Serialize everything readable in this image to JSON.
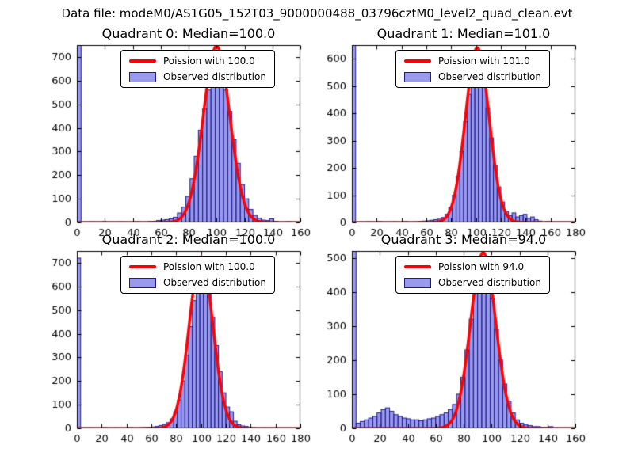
{
  "figure": {
    "title": "Data file: modeM0/AS1G05_152T03_9000000488_03796cztM0_level2_quad_clean.evt"
  },
  "styles": {
    "bar_fill": "rgba(92,92,226,0.62)",
    "bar_edge": "#1d1d8f",
    "curve_color": "#ff0000",
    "axis_color": "#000000",
    "background": "#ffffff"
  },
  "chart_data": [
    {
      "type": "bar",
      "subtype": "histogram-with-fit-line",
      "title": "Quadrant 0: Median=100.0",
      "legend": [
        "Poission with 100.0",
        "Observed distribution"
      ],
      "xlim": [
        0,
        160
      ],
      "ylim": [
        0,
        750
      ],
      "xticks": [
        0,
        20,
        40,
        60,
        80,
        100,
        120,
        140,
        160
      ],
      "yticks": [
        0,
        100,
        200,
        300,
        400,
        500,
        600,
        700
      ],
      "bins": {
        "start": 0,
        "width": 3
      },
      "counts": [
        750,
        0,
        0,
        2,
        0,
        0,
        3,
        0,
        0,
        0,
        2,
        0,
        0,
        0,
        3,
        0,
        0,
        4,
        5,
        8,
        10,
        12,
        15,
        22,
        40,
        65,
        110,
        185,
        280,
        390,
        480,
        560,
        650,
        700,
        640,
        560,
        470,
        350,
        250,
        160,
        100,
        55,
        30,
        18,
        10,
        8,
        15,
        5,
        0,
        0,
        3,
        0,
        0
      ],
      "curve": {
        "type": "gaussian",
        "mu": 100,
        "sigma": 9.5,
        "amp": 745
      }
    },
    {
      "type": "bar",
      "subtype": "histogram-with-fit-line",
      "title": "Quadrant 1: Median=101.0",
      "legend": [
        "Poission with 101.0",
        "Observed distribution"
      ],
      "xlim": [
        0,
        180
      ],
      "ylim": [
        0,
        650
      ],
      "xticks": [
        0,
        20,
        40,
        60,
        80,
        100,
        120,
        140,
        160,
        180
      ],
      "yticks": [
        0,
        100,
        200,
        300,
        400,
        500,
        600
      ],
      "bins": {
        "start": 0,
        "width": 3
      },
      "counts": [
        650,
        0,
        0,
        0,
        2,
        0,
        0,
        3,
        0,
        0,
        0,
        2,
        0,
        0,
        3,
        0,
        0,
        2,
        4,
        5,
        6,
        8,
        10,
        12,
        18,
        30,
        55,
        100,
        170,
        260,
        370,
        470,
        560,
        620,
        590,
        520,
        420,
        310,
        210,
        130,
        75,
        40,
        25,
        35,
        20,
        25,
        30,
        15,
        20,
        10,
        5,
        0,
        3,
        0,
        0,
        0,
        0,
        0,
        0,
        0
      ],
      "curve": {
        "type": "gaussian",
        "mu": 101,
        "sigma": 9.5,
        "amp": 640
      }
    },
    {
      "type": "bar",
      "subtype": "histogram-with-fit-line",
      "title": "Quadrant 2: Median=100.0",
      "legend": [
        "Poission with 100.0",
        "Observed distribution"
      ],
      "xlim": [
        0,
        180
      ],
      "ylim": [
        0,
        750
      ],
      "xticks": [
        0,
        20,
        40,
        60,
        80,
        100,
        120,
        140,
        160,
        180
      ],
      "yticks": [
        0,
        100,
        200,
        300,
        400,
        500,
        600,
        700
      ],
      "bins": {
        "start": 0,
        "width": 3
      },
      "counts": [
        720,
        0,
        0,
        2,
        0,
        0,
        0,
        3,
        0,
        0,
        2,
        0,
        0,
        0,
        3,
        0,
        0,
        3,
        4,
        5,
        6,
        8,
        12,
        16,
        24,
        40,
        70,
        120,
        200,
        310,
        430,
        540,
        630,
        690,
        660,
        580,
        470,
        350,
        240,
        150,
        90,
        70,
        30,
        15,
        10,
        8,
        5,
        3,
        0,
        0,
        2,
        0,
        0,
        0,
        0,
        0,
        0,
        0,
        0,
        0
      ],
      "curve": {
        "type": "gaussian",
        "mu": 100,
        "sigma": 9.5,
        "amp": 725
      }
    },
    {
      "type": "bar",
      "subtype": "histogram-with-fit-line",
      "title": "Quadrant 3: Median=94.0",
      "legend": [
        "Poission with 94.0",
        "Observed distribution"
      ],
      "xlim": [
        0,
        160
      ],
      "ylim": [
        0,
        520
      ],
      "xticks": [
        0,
        20,
        40,
        60,
        80,
        100,
        120,
        140,
        160
      ],
      "yticks": [
        0,
        100,
        200,
        300,
        400,
        500
      ],
      "bins": {
        "start": 0,
        "width": 3
      },
      "counts": [
        520,
        15,
        20,
        25,
        30,
        35,
        45,
        55,
        60,
        50,
        40,
        35,
        30,
        28,
        25,
        25,
        22,
        25,
        28,
        30,
        35,
        40,
        45,
        55,
        70,
        100,
        150,
        230,
        320,
        410,
        470,
        500,
        460,
        380,
        290,
        200,
        130,
        80,
        45,
        25,
        15,
        10,
        8,
        5,
        5,
        3,
        3,
        5,
        0,
        0,
        0,
        0,
        0
      ],
      "curve": {
        "type": "gaussian",
        "mu": 94,
        "sigma": 9,
        "amp": 515
      }
    }
  ]
}
